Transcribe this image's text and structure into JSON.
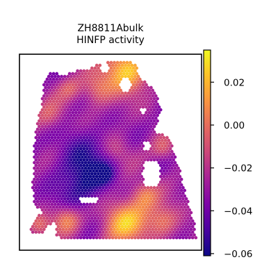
{
  "chart_data": {
    "type": "heatmap",
    "title": "ZH8811Abulk",
    "subtitle": "HINFP activity",
    "xlabel": "",
    "ylabel": "",
    "grid": false,
    "colormap": "plasma",
    "colorbar": {
      "min": -0.061,
      "max": 0.035,
      "ticks": [
        0.02,
        0.0,
        -0.02,
        -0.04,
        -0.06
      ],
      "tick_labels": [
        "0.02",
        "0.00",
        "−0.02",
        "−0.04",
        "−0.06"
      ]
    },
    "regions": [
      {
        "label": "center-left dark patch",
        "value": -0.058
      },
      {
        "label": "lower-right bright patch",
        "value": 0.02
      },
      {
        "label": "upper-right bright rim",
        "value": 0.028
      },
      {
        "label": "typical tissue",
        "value": -0.03
      }
    ]
  }
}
